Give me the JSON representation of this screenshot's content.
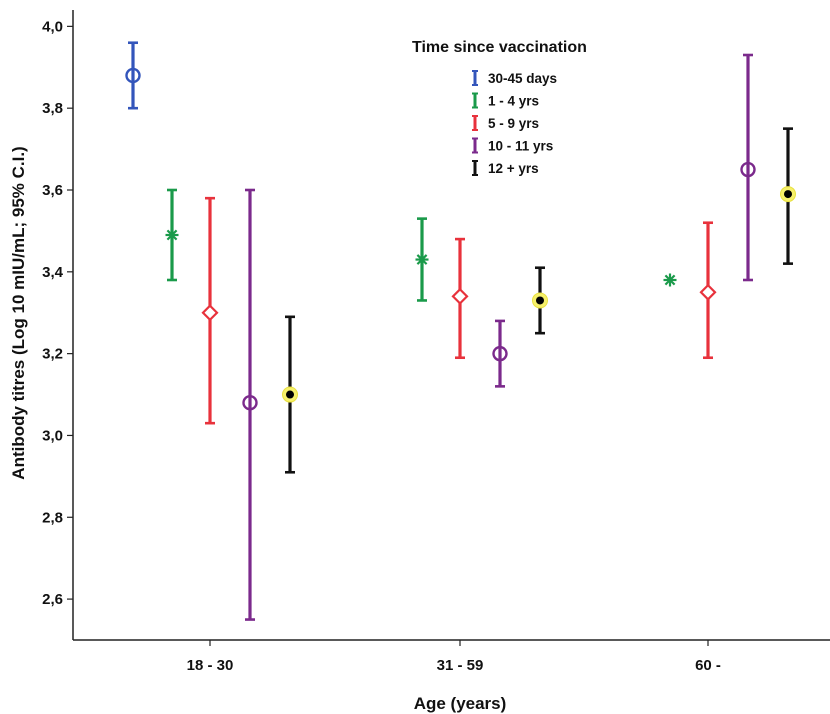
{
  "chart_data": {
    "type": "errorbar",
    "xlabel": "Age (years)",
    "ylabel": "Antibody titres (Log 10 mIU/mL; 95% C.I.)",
    "ylim": [
      2.5,
      4.04
    ],
    "yticks": [
      "2,6",
      "2,8",
      "3,0",
      "3,2",
      "3,4",
      "3,6",
      "3,8",
      "4,0"
    ],
    "ytick_values": [
      2.6,
      2.8,
      3.0,
      3.2,
      3.4,
      3.6,
      3.8,
      4.0
    ],
    "categories": [
      "18 - 30",
      "31 - 59",
      "60 -"
    ],
    "legend": {
      "title": "Time since vaccination",
      "position": "top-right"
    },
    "series": [
      {
        "name": "30-45 days",
        "color": "#3355bb",
        "marker": "circle",
        "points": [
          {
            "category": "18 - 30",
            "mean": 3.88,
            "lower": 3.8,
            "upper": 3.96
          }
        ]
      },
      {
        "name": "1 - 4 yrs",
        "color": "#1a9a4a",
        "marker": "asterisk",
        "points": [
          {
            "category": "18 - 30",
            "mean": 3.49,
            "lower": 3.38,
            "upper": 3.6
          },
          {
            "category": "31 - 59",
            "mean": 3.43,
            "lower": 3.33,
            "upper": 3.53
          },
          {
            "category": "60 -",
            "mean": 3.38,
            "lower": null,
            "upper": null
          }
        ]
      },
      {
        "name": "5 - 9 yrs",
        "color": "#e8323c",
        "marker": "diamond",
        "points": [
          {
            "category": "18 - 30",
            "mean": 3.3,
            "lower": 3.03,
            "upper": 3.58
          },
          {
            "category": "31 - 59",
            "mean": 3.34,
            "lower": 3.19,
            "upper": 3.48
          },
          {
            "category": "60 -",
            "mean": 3.35,
            "lower": 3.19,
            "upper": 3.52
          }
        ]
      },
      {
        "name": "10 - 11 yrs",
        "color": "#7b2a8c",
        "marker": "circle",
        "points": [
          {
            "category": "18 - 30",
            "mean": 3.08,
            "lower": 2.55,
            "upper": 3.6
          },
          {
            "category": "31 - 59",
            "mean": 3.2,
            "lower": 3.12,
            "upper": 3.28
          },
          {
            "category": "60 -",
            "mean": 3.65,
            "lower": 3.38,
            "upper": 3.93
          }
        ]
      },
      {
        "name": "12 + yrs",
        "color": "#111111",
        "marker": "dot-yellow",
        "points": [
          {
            "category": "18 - 30",
            "mean": 3.1,
            "lower": 2.91,
            "upper": 3.29
          },
          {
            "category": "31 - 59",
            "mean": 3.33,
            "lower": 3.25,
            "upper": 3.41
          },
          {
            "category": "60 -",
            "mean": 3.59,
            "lower": 3.42,
            "upper": 3.75
          }
        ]
      }
    ]
  }
}
